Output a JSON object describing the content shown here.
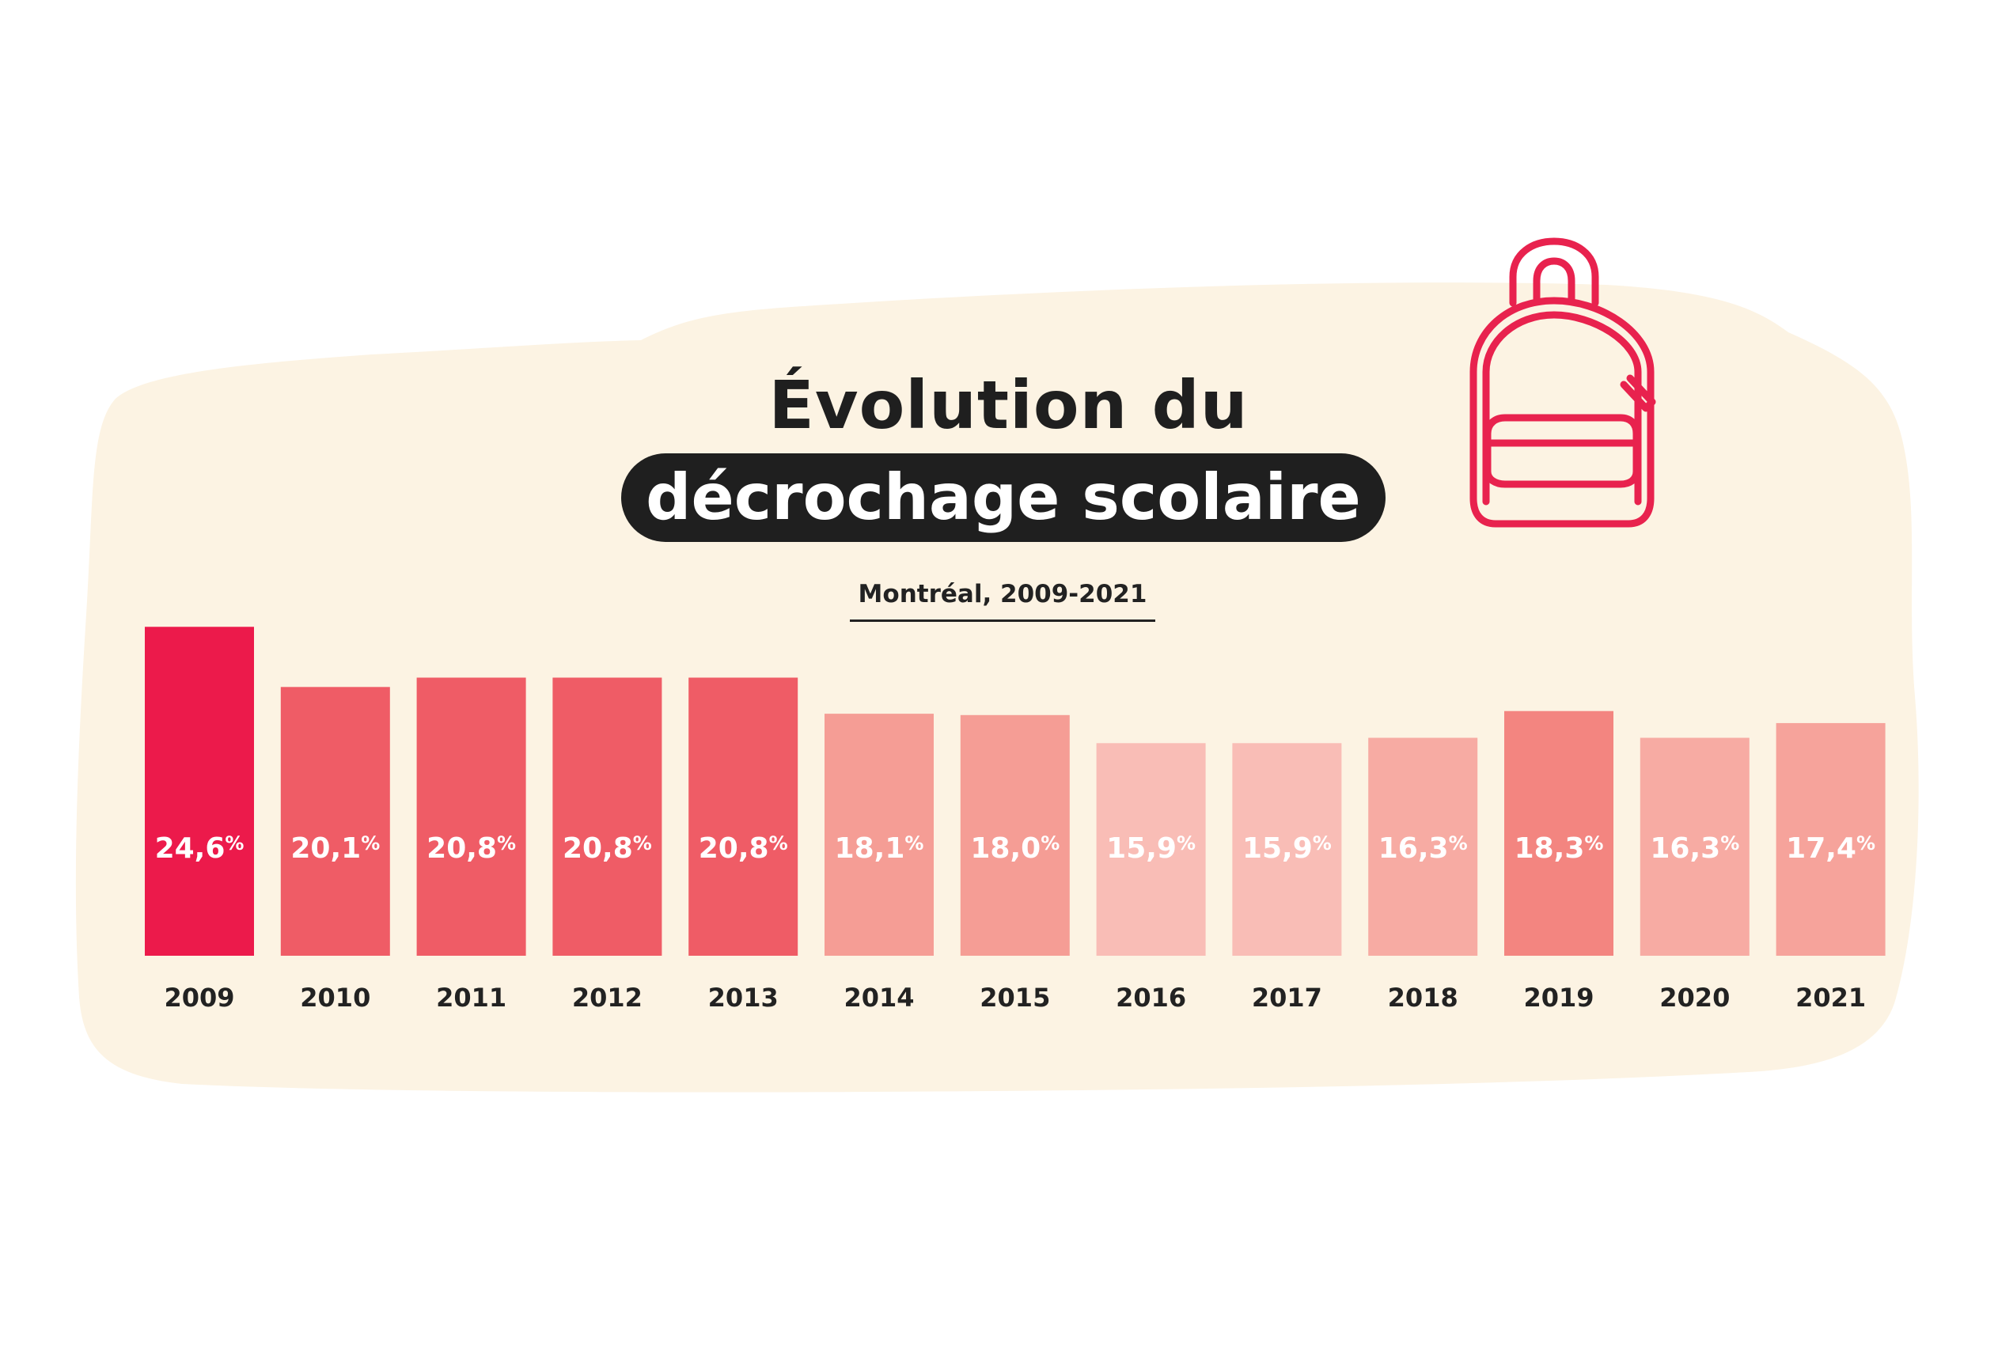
{
  "title": {
    "line1": "Évolution du",
    "line2": "décrochage scolaire"
  },
  "subtitle": "Montréal, 2009-2021",
  "colors": {
    "background_blob": "#fcf3e3",
    "title_pill": "#1f1f1f",
    "backpack_icon": "#e8224e",
    "year_label": "#222222",
    "value_label": "#ffffff"
  },
  "icon": "backpack-icon",
  "chart_data": {
    "type": "bar",
    "categories": [
      "2009",
      "2010",
      "2011",
      "2012",
      "2013",
      "2014",
      "2015",
      "2016",
      "2017",
      "2018",
      "2019",
      "2020",
      "2021"
    ],
    "values": [
      24.6,
      20.1,
      20.8,
      20.8,
      20.8,
      18.1,
      18.0,
      15.9,
      15.9,
      16.3,
      18.3,
      16.3,
      17.4
    ],
    "value_labels": [
      "24,6",
      "20,1",
      "20,8",
      "20,8",
      "20,8",
      "18,1",
      "18,0",
      "15,9",
      "15,9",
      "16,3",
      "18,3",
      "16,3",
      "17,4"
    ],
    "unit": "%",
    "bar_colors": [
      "#ec1a4b",
      "#ef5c66",
      "#ef5c66",
      "#ef5c66",
      "#ef5c66",
      "#f59d95",
      "#f59d95",
      "#f9bdb6",
      "#f9bdb6",
      "#f7aba3",
      "#f38580",
      "#f7aba3",
      "#f6a39b"
    ],
    "title": "Évolution du décrochage scolaire",
    "subtitle": "Montréal, 2009-2021",
    "xlabel": "",
    "ylabel": "",
    "grid": false,
    "legend": "none"
  }
}
